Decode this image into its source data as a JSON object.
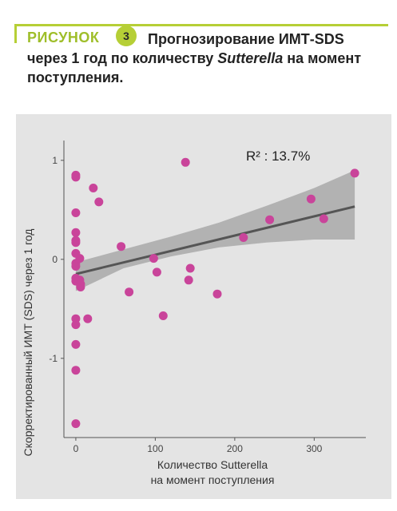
{
  "figure": {
    "label": "РИСУНОК",
    "number": "3",
    "title_part1": "Прогнозирование ИМТ-SDS через 1 год по количеству ",
    "title_italic": "Sutterella",
    "title_part2": " на момент поступления."
  },
  "chart_data": {
    "type": "scatter",
    "title": "",
    "annotation": "R² : 13.7%",
    "xlabel_line1": "Количество Sutterella",
    "xlabel_line2": "на момент поступления",
    "ylabel": "Скорректированный ИМТ (SDS) через 1 год",
    "xlim": [
      -15,
      365
    ],
    "ylim": [
      -1.8,
      1.2
    ],
    "xticks": [
      0,
      100,
      200,
      300
    ],
    "yticks": [
      1,
      0,
      -1
    ],
    "grid": false,
    "legend": "none",
    "point_color": "#c9449a",
    "fit_color": "#555555",
    "band_color": "#a9a9a9",
    "points": [
      [
        0,
        0.85
      ],
      [
        0,
        0.83
      ],
      [
        0,
        0.47
      ],
      [
        0,
        0.27
      ],
      [
        0,
        0.19
      ],
      [
        0,
        0.17
      ],
      [
        0,
        0.06
      ],
      [
        0,
        -0.04
      ],
      [
        0,
        -0.07
      ],
      [
        0,
        -0.19
      ],
      [
        0,
        -0.22
      ],
      [
        0,
        -0.6
      ],
      [
        0,
        -0.66
      ],
      [
        0,
        -0.86
      ],
      [
        0,
        -1.12
      ],
      [
        0,
        -1.66
      ],
      [
        5,
        0.01
      ],
      [
        5,
        -0.21
      ],
      [
        6,
        -0.25
      ],
      [
        6,
        -0.28
      ],
      [
        15,
        -0.6
      ],
      [
        22,
        0.72
      ],
      [
        29,
        0.58
      ],
      [
        57,
        0.13
      ],
      [
        67,
        -0.33
      ],
      [
        98,
        0.01
      ],
      [
        102,
        -0.13
      ],
      [
        110,
        -0.57
      ],
      [
        138,
        0.98
      ],
      [
        142,
        -0.21
      ],
      [
        144,
        -0.09
      ],
      [
        178,
        -0.35
      ],
      [
        211,
        0.22
      ],
      [
        244,
        0.4
      ],
      [
        296,
        0.61
      ],
      [
        312,
        0.41
      ],
      [
        351,
        0.87
      ]
    ],
    "fit": {
      "intercept": -0.148,
      "slope": 0.00194,
      "x_range": [
        0,
        351
      ]
    },
    "band": {
      "upper": [
        [
          0,
          -0.03
        ],
        [
          60,
          0.1
        ],
        [
          120,
          0.23
        ],
        [
          180,
          0.37
        ],
        [
          240,
          0.54
        ],
        [
          300,
          0.72
        ],
        [
          351,
          0.9
        ]
      ],
      "lower": [
        [
          0,
          -0.32
        ],
        [
          60,
          -0.09
        ],
        [
          120,
          0.03
        ],
        [
          180,
          0.12
        ],
        [
          240,
          0.17
        ],
        [
          300,
          0.2
        ],
        [
          351,
          0.2
        ]
      ]
    }
  }
}
